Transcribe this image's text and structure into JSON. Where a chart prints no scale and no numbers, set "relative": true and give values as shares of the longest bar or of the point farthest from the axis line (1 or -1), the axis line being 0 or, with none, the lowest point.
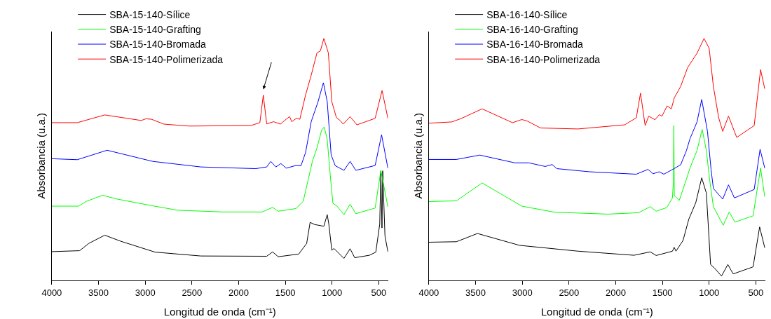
{
  "chart_data": [
    {
      "type": "line",
      "relative": true,
      "xlabel": "Longitud de onda (cm⁻¹)",
      "ylabel": "Absorbancia (u.a.)",
      "xlim": [
        4000,
        400
      ],
      "xticks": [
        4000,
        3500,
        3000,
        2500,
        2000,
        1500,
        1000,
        500
      ],
      "legend": "top left",
      "marker": "none",
      "line_style": "solid",
      "series": [
        {
          "name": "SBA-15-140-Sílice",
          "color": "#000000",
          "x": [
            4000,
            3702,
            3604,
            3433,
            3262,
            2895,
            2404,
            1700,
            1637,
            1577,
            1357,
            1272,
            1235,
            1186,
            1088,
            1052,
            1035,
            1003,
            979,
            873,
            807,
            758,
            600,
            532,
            490,
            478,
            466,
            458,
            434,
            403
          ],
          "values": [
            0.119,
            0.123,
            0.153,
            0.187,
            0.162,
            0.117,
            0.101,
            0.1,
            0.118,
            0.098,
            0.109,
            0.153,
            0.24,
            0.231,
            0.224,
            0.272,
            0.233,
            0.125,
            0.132,
            0.091,
            0.131,
            0.094,
            0.104,
            0.117,
            0.233,
            0.453,
            0.217,
            0.453,
            0.184,
            0.119
          ]
        },
        {
          "name": "SBA-15-140-Grafting",
          "color": "#00ff00",
          "x": [
            4000,
            3714,
            3629,
            3457,
            3310,
            2944,
            2651,
            2162,
            1747,
            1637,
            1577,
            1387,
            1309,
            1260,
            1211,
            1162,
            1113,
            1084,
            1052,
            1020,
            991,
            954,
            873,
            807,
            746,
            539,
            478,
            403
          ],
          "values": [
            0.307,
            0.307,
            0.327,
            0.352,
            0.337,
            0.31,
            0.29,
            0.283,
            0.283,
            0.302,
            0.286,
            0.297,
            0.327,
            0.409,
            0.492,
            0.547,
            0.62,
            0.634,
            0.583,
            0.437,
            0.318,
            0.31,
            0.272,
            0.315,
            0.276,
            0.299,
            0.455,
            0.304
          ]
        },
        {
          "name": "SBA-15-140-Bromada",
          "color": "#0000ff",
          "x": [
            4000,
            3727,
            3408,
            2920,
            2404,
            1817,
            1700,
            1656,
            1602,
            1548,
            1492,
            1387,
            1333,
            1284,
            1223,
            1150,
            1093,
            1052,
            1010,
            966,
            873,
            807,
            746,
            539,
            470,
            403
          ],
          "values": [
            0.503,
            0.499,
            0.538,
            0.492,
            0.469,
            0.462,
            0.469,
            0.492,
            0.469,
            0.483,
            0.464,
            0.475,
            0.474,
            0.528,
            0.657,
            0.739,
            0.817,
            0.739,
            0.519,
            0.474,
            0.455,
            0.492,
            0.455,
            0.475,
            0.602,
            0.464
          ]
        },
        {
          "name": "SBA-15-140-Polimerizada",
          "color": "#ff0000",
          "x": [
            4000,
            3727,
            3433,
            3042,
            2993,
            2932,
            2800,
            2531,
            1871,
            1773,
            1736,
            1700,
            1626,
            1553,
            1492,
            1455,
            1431,
            1382,
            1345,
            1284,
            1223,
            1162,
            1125,
            1088,
            1040,
            1003,
            954,
            917,
            881,
            807,
            734,
            539,
            465,
            403
          ],
          "values": [
            0.652,
            0.652,
            0.684,
            0.661,
            0.668,
            0.666,
            0.646,
            0.638,
            0.64,
            0.652,
            0.766,
            0.647,
            0.656,
            0.646,
            0.666,
            0.677,
            0.656,
            0.67,
            0.666,
            0.766,
            0.849,
            0.94,
            0.949,
            1.0,
            0.94,
            0.739,
            0.673,
            0.662,
            0.646,
            0.677,
            0.643,
            0.67,
            0.785,
            0.67
          ]
        }
      ]
    },
    {
      "type": "line",
      "relative": true,
      "xlabel": "Longitud de onda (cm⁻¹)",
      "ylabel": "Absorbancia (u.a.)",
      "xlim": [
        4000,
        400
      ],
      "xticks": [
        4000,
        3500,
        3000,
        2500,
        2000,
        1500,
        1000,
        500
      ],
      "legend": "top left",
      "marker": "none",
      "line_style": "solid",
      "series": [
        {
          "name": "SBA-16-140-Sílice",
          "color": "#000000",
          "x": [
            4000,
            3705,
            3480,
            3030,
            2405,
            1805,
            1630,
            1567,
            1393,
            1375,
            1355,
            1280,
            1218,
            1143,
            1080,
            1030,
            985,
            943,
            868,
            800,
            743,
            530,
            460,
            405
          ],
          "values": [
            0.158,
            0.16,
            0.194,
            0.145,
            0.121,
            0.104,
            0.118,
            0.103,
            0.121,
            0.137,
            0.121,
            0.165,
            0.253,
            0.322,
            0.424,
            0.361,
            0.066,
            0.051,
            0.018,
            0.066,
            0.027,
            0.056,
            0.221,
            0.135
          ]
        },
        {
          "name": "SBA-16-140-Grafting",
          "color": "#00ff00",
          "x": [
            4000,
            3705,
            3430,
            3005,
            2655,
            2080,
            1755,
            1630,
            1567,
            1455,
            1393,
            1383,
            1378,
            1373,
            1363,
            1320,
            1243,
            1205,
            1130,
            1075,
            1030,
            993,
            955,
            850,
            785,
            725,
            530,
            450,
            405
          ],
          "values": [
            0.326,
            0.329,
            0.403,
            0.307,
            0.282,
            0.274,
            0.28,
            0.305,
            0.286,
            0.301,
            0.341,
            0.41,
            0.64,
            0.35,
            0.347,
            0.331,
            0.419,
            0.465,
            0.537,
            0.624,
            0.537,
            0.41,
            0.305,
            0.228,
            0.283,
            0.241,
            0.267,
            0.464,
            0.346
          ]
        },
        {
          "name": "SBA-16-140-Bromada",
          "color": "#0000ff",
          "x": [
            4000,
            3705,
            3455,
            3080,
            2930,
            2755,
            2680,
            2630,
            2280,
            1780,
            1655,
            1600,
            1535,
            1485,
            1380,
            1305,
            1243,
            1205,
            1130,
            1080,
            1018,
            980,
            955,
            855,
            793,
            730,
            518,
            455,
            405
          ],
          "values": [
            0.5,
            0.5,
            0.518,
            0.486,
            0.486,
            0.471,
            0.479,
            0.462,
            0.449,
            0.439,
            0.459,
            0.441,
            0.449,
            0.439,
            0.461,
            0.478,
            0.537,
            0.586,
            0.655,
            0.748,
            0.616,
            0.459,
            0.38,
            0.336,
            0.395,
            0.341,
            0.376,
            0.542,
            0.464
          ]
        },
        {
          "name": "SBA-16-140-Polimerizada",
          "color": "#ff0000",
          "x": [
            4000,
            3755,
            3655,
            3430,
            3105,
            3005,
            2943,
            2805,
            2405,
            1905,
            1780,
            1735,
            1685,
            1647,
            1580,
            1535,
            1505,
            1450,
            1405,
            1373,
            1305,
            1230,
            1130,
            1055,
            1000,
            955,
            898,
            855,
            793,
            705,
            518,
            450,
            405
          ],
          "values": [
            0.65,
            0.655,
            0.669,
            0.709,
            0.652,
            0.665,
            0.658,
            0.63,
            0.626,
            0.643,
            0.672,
            0.774,
            0.64,
            0.679,
            0.664,
            0.685,
            0.679,
            0.721,
            0.709,
            0.755,
            0.802,
            0.88,
            0.939,
            1.0,
            0.959,
            0.802,
            0.672,
            0.616,
            0.679,
            0.591,
            0.64,
            0.871,
            0.792
          ]
        }
      ]
    }
  ]
}
